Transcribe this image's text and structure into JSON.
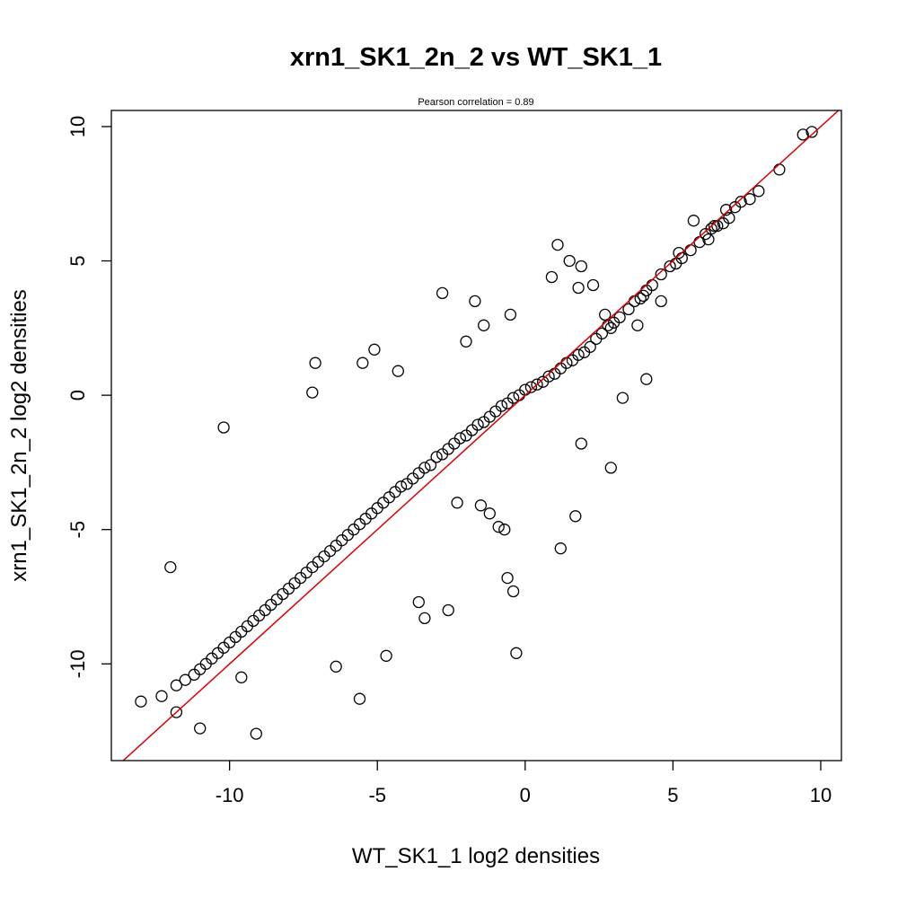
{
  "chart_data": {
    "type": "scatter",
    "title": "xrn1_SK1_2n_2 vs WT_SK1_1",
    "subtitle": "Pearson correlation =  0.89",
    "xlabel": "WT_SK1_1 log2 densities",
    "ylabel": "xrn1_SK1_2n_2 log2 densities",
    "xlim": [
      -14,
      10.7
    ],
    "ylim": [
      -13.6,
      10.6
    ],
    "xticks": [
      -10,
      -5,
      0,
      5,
      10
    ],
    "xtick_labels": [
      "-10",
      "-5",
      "0",
      "5",
      "10"
    ],
    "yticks": [
      -10,
      -5,
      0,
      5,
      10
    ],
    "ytick_labels": [
      "-10",
      "-5",
      "0",
      "5",
      "10"
    ],
    "grid": false,
    "legend": "none",
    "marker": "open-circle",
    "marker_color": "#000000",
    "reference_line": {
      "type": "identity",
      "slope": 1,
      "intercept": 0,
      "color": "#dd0000"
    },
    "x": [
      9.7,
      9.4,
      8.6,
      7.9,
      7.6,
      7.3,
      7.1,
      6.9,
      6.7,
      6.5,
      6.4,
      6.3,
      6.1,
      5.9,
      5.6,
      5.3,
      5.1,
      4.9,
      4.6,
      4.3,
      4.1,
      4.0,
      3.9,
      3.7,
      3.5,
      3.2,
      3.0,
      2.9,
      2.8,
      2.6,
      2.4,
      2.2,
      2.0,
      1.8,
      1.6,
      1.4,
      1.2,
      1.0,
      0.8,
      0.6,
      0.4,
      0.2,
      0.0,
      -0.2,
      -0.4,
      -0.6,
      -0.8,
      -1.0,
      -1.2,
      -1.4,
      -1.6,
      -1.8,
      -2.0,
      -2.2,
      -2.4,
      -2.6,
      -2.8,
      -3.0,
      -3.2,
      -3.4,
      -3.6,
      -3.8,
      -4.0,
      -4.2,
      -4.4,
      -4.6,
      -4.8,
      -5.0,
      -5.2,
      -5.4,
      -5.6,
      -5.8,
      -6.0,
      -6.2,
      -6.4,
      -6.6,
      -6.8,
      -7.0,
      -7.2,
      -7.4,
      -7.6,
      -7.8,
      -8.0,
      -8.2,
      -8.4,
      -8.6,
      -8.8,
      -9.0,
      -9.2,
      -9.4,
      -9.6,
      -9.8,
      -10.0,
      -10.2,
      -10.4,
      -10.6,
      -10.8,
      -11.0,
      -11.2,
      -11.5,
      -11.8,
      -12.3,
      -13.0,
      1.7,
      1.9,
      1.5,
      1.1,
      3.3,
      4.1,
      2.9,
      1.9,
      1.2,
      -0.3,
      -0.4,
      -0.6,
      -0.7,
      -0.9,
      -1.2,
      -1.5,
      -2.3,
      -2.8,
      -4.3,
      -5.1,
      -5.5,
      -7.2,
      -7.1,
      -10.2,
      -9.1,
      -9.6,
      -11.0,
      -11.8,
      -12.0,
      -2.6,
      -3.4,
      -3.6,
      -4.7,
      -5.6,
      -6.4,
      -1.4,
      -1.7,
      -2.0,
      -0.5,
      0.9,
      1.8,
      2.3,
      2.7,
      3.8,
      4.6,
      5.2,
      5.7,
      6.2,
      6.8
    ],
    "y": [
      9.8,
      9.7,
      8.4,
      7.6,
      7.3,
      7.2,
      7.0,
      6.6,
      6.4,
      6.3,
      6.3,
      6.2,
      6.0,
      5.7,
      5.4,
      5.1,
      4.9,
      4.8,
      4.5,
      4.1,
      3.9,
      3.7,
      3.6,
      3.5,
      3.2,
      2.9,
      2.7,
      2.5,
      2.6,
      2.3,
      2.1,
      1.8,
      1.6,
      1.5,
      1.3,
      1.2,
      1.0,
      0.8,
      0.7,
      0.5,
      0.4,
      0.3,
      0.2,
      0.0,
      -0.1,
      -0.3,
      -0.4,
      -0.6,
      -0.8,
      -1.0,
      -1.1,
      -1.3,
      -1.5,
      -1.6,
      -1.8,
      -2.0,
      -2.2,
      -2.3,
      -2.6,
      -2.7,
      -2.9,
      -3.1,
      -3.3,
      -3.4,
      -3.6,
      -3.8,
      -4.0,
      -4.2,
      -4.4,
      -4.6,
      -4.8,
      -5.0,
      -5.2,
      -5.4,
      -5.6,
      -5.8,
      -6.0,
      -6.2,
      -6.4,
      -6.6,
      -6.8,
      -7.0,
      -7.2,
      -7.4,
      -7.6,
      -7.8,
      -8.0,
      -8.2,
      -8.4,
      -8.6,
      -8.8,
      -9.0,
      -9.2,
      -9.4,
      -9.6,
      -9.8,
      -10.0,
      -10.2,
      -10.4,
      -10.6,
      -10.8,
      -11.2,
      -11.4,
      -4.5,
      -1.8,
      5.0,
      5.6,
      -0.1,
      0.6,
      -2.7,
      4.8,
      -5.7,
      -9.6,
      -7.3,
      -6.8,
      -5.0,
      -4.9,
      -4.4,
      -4.1,
      -4.0,
      3.8,
      0.9,
      1.7,
      1.2,
      0.1,
      1.2,
      -1.2,
      -12.6,
      -10.5,
      -12.4,
      -11.8,
      -6.4,
      -8.0,
      -8.3,
      -7.7,
      -9.7,
      -11.3,
      -10.1,
      2.6,
      3.5,
      2.0,
      3.0,
      4.4,
      4.0,
      4.1,
      3.0,
      2.6,
      3.5,
      5.3,
      6.5,
      5.8,
      6.9
    ]
  }
}
